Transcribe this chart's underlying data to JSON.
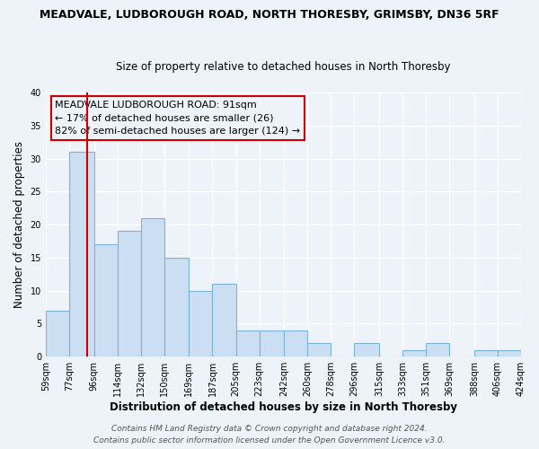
{
  "title": "MEADVALE, LUDBOROUGH ROAD, NORTH THORESBY, GRIMSBY, DN36 5RF",
  "subtitle": "Size of property relative to detached houses in North Thoresby",
  "xlabel": "Distribution of detached houses by size in North Thoresby",
  "ylabel": "Number of detached properties",
  "bin_labels": [
    "59sqm",
    "77sqm",
    "96sqm",
    "114sqm",
    "132sqm",
    "150sqm",
    "169sqm",
    "187sqm",
    "205sqm",
    "223sqm",
    "242sqm",
    "260sqm",
    "278sqm",
    "296sqm",
    "315sqm",
    "333sqm",
    "351sqm",
    "369sqm",
    "388sqm",
    "406sqm",
    "424sqm"
  ],
  "bin_edges": [
    59,
    77,
    96,
    114,
    132,
    150,
    169,
    187,
    205,
    223,
    242,
    260,
    278,
    296,
    315,
    333,
    351,
    369,
    388,
    406,
    424
  ],
  "bar_heights": [
    7,
    31,
    17,
    19,
    21,
    15,
    10,
    11,
    4,
    4,
    4,
    2,
    0,
    2,
    0,
    1,
    2,
    0,
    1,
    1
  ],
  "bar_color": "#ccdff2",
  "bar_edge_color": "#7ab4d8",
  "property_value": 91,
  "red_line_color": "#cc0000",
  "annotation_text": "MEADVALE LUDBOROUGH ROAD: 91sqm\n← 17% of detached houses are smaller (26)\n82% of semi-detached houses are larger (124) →",
  "annotation_box_edge_color": "#cc0000",
  "ylim": [
    0,
    40
  ],
  "yticks": [
    0,
    5,
    10,
    15,
    20,
    25,
    30,
    35,
    40
  ],
  "footer_line1": "Contains HM Land Registry data © Crown copyright and database right 2024.",
  "footer_line2": "Contains public sector information licensed under the Open Government Licence v3.0.",
  "background_color": "#eef2f9",
  "grid_color": "#ffffff",
  "title_fontsize": 9,
  "subtitle_fontsize": 8.5,
  "axis_label_fontsize": 8.5,
  "tick_fontsize": 7,
  "annotation_fontsize": 8,
  "footer_fontsize": 6.5
}
